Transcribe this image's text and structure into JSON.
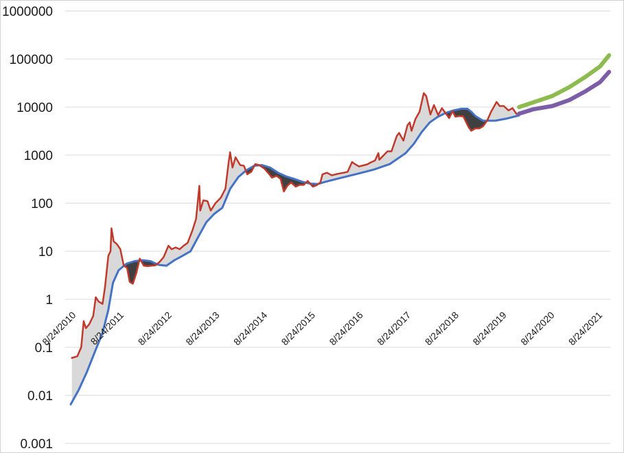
{
  "chart_data": {
    "type": "line",
    "title": "",
    "xlabel": "",
    "ylabel": "",
    "y_scale": "log",
    "ylim": [
      0.001,
      1000000
    ],
    "y_ticks": [
      "0.001",
      "0.01",
      "0.1",
      "1",
      "10",
      "100",
      "1000",
      "10000",
      "100000",
      "1000000"
    ],
    "x_ticks": [
      "8/24/2010",
      "8/24/2011",
      "8/24/2012",
      "8/24/2013",
      "8/24/2014",
      "8/24/2015",
      "8/24/2016",
      "8/24/2017",
      "8/24/2018",
      "8/24/2019",
      "8/24/2020",
      "8/24/2021"
    ],
    "xlim": [
      "2010-06-20",
      "2021-11-10"
    ],
    "grid": true,
    "legend": "none",
    "colors": {
      "price": "#c0392b",
      "model": "#4472c4",
      "forecast_high": "#8dbb4f",
      "forecast_low": "#7b5ea7",
      "fill_above": "#d9d9d9",
      "fill_below": "#404040"
    },
    "series": [
      {
        "key": "price",
        "points": [
          [
            "2010-08-10",
            0.06
          ],
          [
            "2010-09-20",
            0.065
          ],
          [
            "2010-10-20",
            0.1
          ],
          [
            "2010-11-08",
            0.35
          ],
          [
            "2010-11-25",
            0.25
          ],
          [
            "2010-12-20",
            0.3
          ],
          [
            "2011-01-20",
            0.45
          ],
          [
            "2011-02-08",
            1.1
          ],
          [
            "2011-03-01",
            0.9
          ],
          [
            "2011-04-01",
            0.8
          ],
          [
            "2011-04-20",
            1.8
          ],
          [
            "2011-05-15",
            8
          ],
          [
            "2011-06-01",
            10
          ],
          [
            "2011-06-08",
            30
          ],
          [
            "2011-06-25",
            16
          ],
          [
            "2011-07-20",
            14
          ],
          [
            "2011-08-15",
            11
          ],
          [
            "2011-09-10",
            5
          ],
          [
            "2011-10-05",
            4.5
          ],
          [
            "2011-10-25",
            2.3
          ],
          [
            "2011-11-18",
            2.1
          ],
          [
            "2011-12-15",
            3.5
          ],
          [
            "2012-01-10",
            7
          ],
          [
            "2012-02-10",
            5
          ],
          [
            "2012-03-10",
            4.9
          ],
          [
            "2012-04-10",
            5
          ],
          [
            "2012-05-10",
            5.1
          ],
          [
            "2012-06-10",
            6
          ],
          [
            "2012-07-10",
            7.5
          ],
          [
            "2012-08-16",
            13
          ],
          [
            "2012-09-10",
            11
          ],
          [
            "2012-10-10",
            12
          ],
          [
            "2012-11-10",
            11
          ],
          [
            "2012-12-10",
            13
          ],
          [
            "2013-01-10",
            15
          ],
          [
            "2013-02-15",
            27
          ],
          [
            "2013-03-15",
            47
          ],
          [
            "2013-04-09",
            230
          ],
          [
            "2013-04-16",
            70
          ],
          [
            "2013-05-10",
            115
          ],
          [
            "2013-06-10",
            110
          ],
          [
            "2013-07-05",
            70
          ],
          [
            "2013-08-10",
            100
          ],
          [
            "2013-09-20",
            130
          ],
          [
            "2013-10-25",
            200
          ],
          [
            "2013-11-18",
            700
          ],
          [
            "2013-11-30",
            1150
          ],
          [
            "2013-12-18",
            550
          ],
          [
            "2014-01-10",
            900
          ],
          [
            "2014-02-15",
            620
          ],
          [
            "2014-03-15",
            600
          ],
          [
            "2014-04-10",
            400
          ],
          [
            "2014-05-10",
            450
          ],
          [
            "2014-06-10",
            650
          ],
          [
            "2014-07-10",
            620
          ],
          [
            "2014-08-20",
            520
          ],
          [
            "2014-09-25",
            400
          ],
          [
            "2014-10-15",
            340
          ],
          [
            "2014-11-20",
            370
          ],
          [
            "2014-12-20",
            320
          ],
          [
            "2015-01-14",
            175
          ],
          [
            "2015-02-10",
            230
          ],
          [
            "2015-03-10",
            270
          ],
          [
            "2015-04-15",
            220
          ],
          [
            "2015-05-15",
            240
          ],
          [
            "2015-06-15",
            240
          ],
          [
            "2015-07-15",
            290
          ],
          [
            "2015-08-24",
            220
          ],
          [
            "2015-09-20",
            235
          ],
          [
            "2015-10-20",
            270
          ],
          [
            "2015-11-05",
            400
          ],
          [
            "2015-12-10",
            430
          ],
          [
            "2016-01-15",
            380
          ],
          [
            "2016-02-15",
            400
          ],
          [
            "2016-03-15",
            415
          ],
          [
            "2016-04-15",
            430
          ],
          [
            "2016-05-15",
            450
          ],
          [
            "2016-06-18",
            720
          ],
          [
            "2016-07-10",
            650
          ],
          [
            "2016-08-10",
            580
          ],
          [
            "2016-09-10",
            610
          ],
          [
            "2016-10-10",
            640
          ],
          [
            "2016-11-10",
            710
          ],
          [
            "2016-12-10",
            770
          ],
          [
            "2017-01-05",
            1100
          ],
          [
            "2017-01-12",
            800
          ],
          [
            "2017-02-15",
            1000
          ],
          [
            "2017-03-15",
            1200
          ],
          [
            "2017-04-15",
            1200
          ],
          [
            "2017-05-25",
            2500
          ],
          [
            "2017-06-12",
            2900
          ],
          [
            "2017-07-15",
            2000
          ],
          [
            "2017-08-15",
            4200
          ],
          [
            "2017-09-01",
            4800
          ],
          [
            "2017-09-15",
            3200
          ],
          [
            "2017-10-15",
            5700
          ],
          [
            "2017-11-15",
            8000
          ],
          [
            "2017-12-17",
            19500
          ],
          [
            "2018-01-05",
            17000
          ],
          [
            "2018-02-06",
            7000
          ],
          [
            "2018-03-05",
            11000
          ],
          [
            "2018-04-06",
            6800
          ],
          [
            "2018-05-05",
            9500
          ],
          [
            "2018-06-29",
            5900
          ],
          [
            "2018-07-25",
            8200
          ],
          [
            "2018-08-15",
            6300
          ],
          [
            "2018-09-15",
            6500
          ],
          [
            "2018-10-15",
            6400
          ],
          [
            "2018-11-25",
            3800
          ],
          [
            "2018-12-15",
            3200
          ],
          [
            "2019-01-15",
            3600
          ],
          [
            "2019-02-15",
            3600
          ],
          [
            "2019-03-15",
            4000
          ],
          [
            "2019-04-15",
            5200
          ],
          [
            "2019-05-15",
            8000
          ],
          [
            "2019-06-26",
            12800
          ],
          [
            "2019-07-20",
            10500
          ],
          [
            "2019-08-20",
            10500
          ],
          [
            "2019-09-25",
            8500
          ],
          [
            "2019-10-26",
            9500
          ],
          [
            "2019-11-25",
            7200
          ],
          [
            "2019-12-15",
            7200
          ]
        ]
      },
      {
        "key": "model",
        "points": [
          [
            "2010-08-01",
            0.0065
          ],
          [
            "2010-10-01",
            0.013
          ],
          [
            "2010-12-01",
            0.03
          ],
          [
            "2011-02-01",
            0.08
          ],
          [
            "2011-04-01",
            0.2
          ],
          [
            "2011-05-15",
            0.6
          ],
          [
            "2011-06-20",
            2.2
          ],
          [
            "2011-08-01",
            4
          ],
          [
            "2011-10-01",
            5.5
          ],
          [
            "2011-12-01",
            6.2
          ],
          [
            "2012-02-01",
            6.5
          ],
          [
            "2012-04-01",
            6.2
          ],
          [
            "2012-06-01",
            5.2
          ],
          [
            "2012-08-01",
            5
          ],
          [
            "2012-10-01",
            6.5
          ],
          [
            "2012-12-01",
            8
          ],
          [
            "2013-02-01",
            10
          ],
          [
            "2013-04-01",
            20
          ],
          [
            "2013-06-01",
            40
          ],
          [
            "2013-08-01",
            60
          ],
          [
            "2013-10-01",
            80
          ],
          [
            "2013-12-01",
            200
          ],
          [
            "2014-02-01",
            350
          ],
          [
            "2014-04-01",
            480
          ],
          [
            "2014-06-01",
            600
          ],
          [
            "2014-08-01",
            620
          ],
          [
            "2014-10-01",
            550
          ],
          [
            "2014-12-01",
            430
          ],
          [
            "2015-02-01",
            360
          ],
          [
            "2015-04-01",
            320
          ],
          [
            "2015-06-01",
            280
          ],
          [
            "2015-08-01",
            255
          ],
          [
            "2015-10-01",
            250
          ],
          [
            "2015-12-01",
            280
          ],
          [
            "2016-04-01",
            340
          ],
          [
            "2016-08-01",
            410
          ],
          [
            "2016-12-01",
            500
          ],
          [
            "2017-04-01",
            650
          ],
          [
            "2017-08-01",
            1100
          ],
          [
            "2017-10-01",
            1700
          ],
          [
            "2017-12-01",
            3000
          ],
          [
            "2018-02-01",
            4800
          ],
          [
            "2018-04-01",
            6200
          ],
          [
            "2018-06-01",
            7500
          ],
          [
            "2018-08-01",
            8500
          ],
          [
            "2018-10-01",
            9200
          ],
          [
            "2018-11-15",
            9200
          ],
          [
            "2018-12-15",
            8000
          ],
          [
            "2019-01-15",
            6500
          ],
          [
            "2019-03-15",
            5200
          ],
          [
            "2019-06-15",
            5200
          ],
          [
            "2019-09-15",
            5800
          ],
          [
            "2019-12-15",
            6700
          ]
        ]
      },
      {
        "key": "forecast_high",
        "points": [
          [
            "2019-12-15",
            10000
          ],
          [
            "2020-04-01",
            12500
          ],
          [
            "2020-08-24",
            17000
          ],
          [
            "2021-01-01",
            26000
          ],
          [
            "2021-05-01",
            42000
          ],
          [
            "2021-08-24",
            70000
          ],
          [
            "2021-11-01",
            120000
          ]
        ]
      },
      {
        "key": "forecast_low",
        "points": [
          [
            "2019-12-15",
            7300
          ],
          [
            "2020-04-01",
            9000
          ],
          [
            "2020-08-24",
            10500
          ],
          [
            "2021-01-01",
            14000
          ],
          [
            "2021-05-01",
            21000
          ],
          [
            "2021-08-24",
            33000
          ],
          [
            "2021-11-01",
            54000
          ]
        ]
      }
    ]
  }
}
